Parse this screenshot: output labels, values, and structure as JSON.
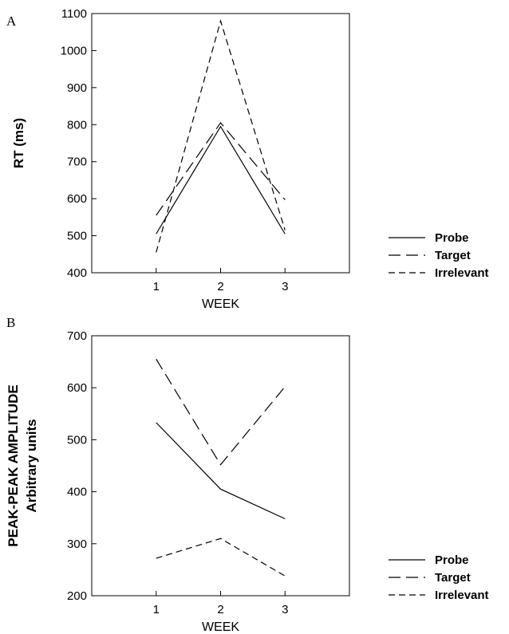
{
  "chart_data": [
    {
      "type": "line",
      "panel_label": "A",
      "xlabel": "WEEK",
      "ylabel": "RT (ms)",
      "ylabel2": "",
      "x": [
        1,
        2,
        3
      ],
      "xlim": [
        0,
        4
      ],
      "ylim": [
        400,
        1100
      ],
      "yticks": [
        400,
        500,
        600,
        700,
        800,
        900,
        1000,
        1100
      ],
      "xticks": [
        1,
        2,
        3
      ],
      "grid": false,
      "legend_position": "right",
      "series": [
        {
          "name": "Probe",
          "style": "solid",
          "values": [
            505,
            795,
            505
          ]
        },
        {
          "name": "Target",
          "style": "long-dash",
          "values": [
            555,
            805,
            597
          ]
        },
        {
          "name": "Irrelevant",
          "style": "short-dash",
          "values": [
            455,
            1080,
            515
          ]
        }
      ]
    },
    {
      "type": "line",
      "panel_label": "B",
      "xlabel": "WEEK",
      "ylabel": "PEAK-PEAK AMPLITUDE",
      "ylabel2": "Arbitrary units",
      "x": [
        1,
        2,
        3
      ],
      "xlim": [
        0,
        4
      ],
      "ylim": [
        200,
        700
      ],
      "yticks": [
        200,
        300,
        400,
        500,
        600,
        700
      ],
      "xticks": [
        1,
        2,
        3
      ],
      "grid": false,
      "legend_position": "right",
      "series": [
        {
          "name": "Probe",
          "style": "solid",
          "values": [
            533,
            405,
            348
          ]
        },
        {
          "name": "Target",
          "style": "long-dash",
          "values": [
            655,
            452,
            602
          ]
        },
        {
          "name": "Irrelevant",
          "style": "short-dash",
          "values": [
            272,
            310,
            238
          ]
        }
      ]
    }
  ]
}
